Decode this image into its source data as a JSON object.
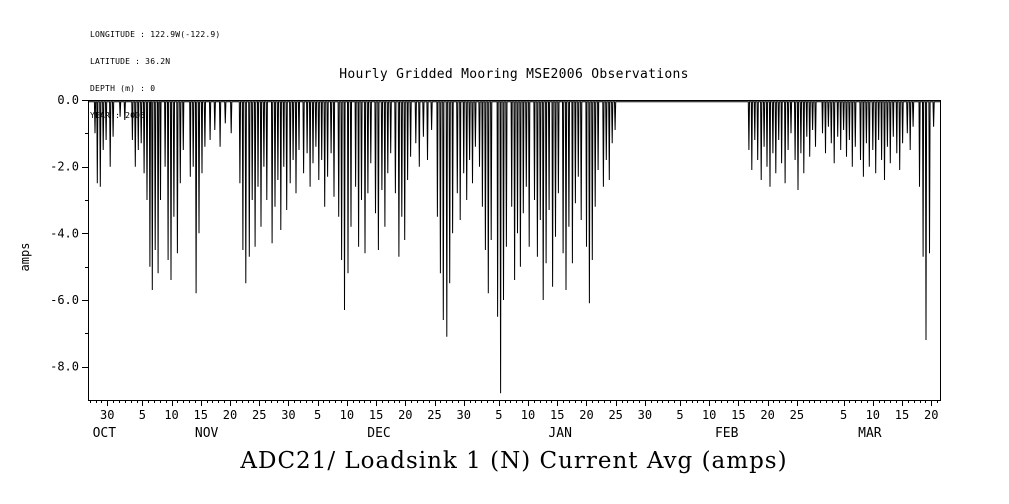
{
  "page": {
    "bg": "#ffffff",
    "fg": "#000000"
  },
  "metadata": {
    "lines": [
      "LONGITUDE : 122.9W(-122.9)",
      "LATITUDE : 36.2N",
      "DEPTH (m) : 0",
      "YEAR : 2006"
    ]
  },
  "title": "Hourly Gridded Mooring MSE2006 Observations",
  "bottom_title": "ADC21/ Loadsink 1 (N) Current Avg (amps)",
  "chart_data": {
    "type": "line",
    "title": "Hourly Gridded Mooring MSE2006 Observations",
    "xlabel": "",
    "ylabel": "amps",
    "ylim": [
      -9,
      0
    ],
    "xlim_days": [
      -0.3,
      145.5
    ],
    "x_axis_note": "time axis; day 0 = Oct 27, range Oct-Mar",
    "grid": false,
    "legend": "none",
    "line_color": "#000000",
    "baseline": -0.05,
    "y_ticks": [
      0,
      -2,
      -4,
      -6,
      -8
    ],
    "y_tick_labels": [
      "0.0",
      "-2.0",
      "-4.0",
      "-6.0",
      "-8.0"
    ],
    "y_minor_ticks": [
      -1,
      -3,
      -5,
      -7
    ],
    "x_ticks": [
      {
        "day": 3,
        "label": "30"
      },
      {
        "day": 9,
        "label": "5"
      },
      {
        "day": 14,
        "label": "10"
      },
      {
        "day": 19,
        "label": "15"
      },
      {
        "day": 24,
        "label": "20"
      },
      {
        "day": 29,
        "label": "25"
      },
      {
        "day": 34,
        "label": "30"
      },
      {
        "day": 39,
        "label": "5"
      },
      {
        "day": 44,
        "label": "10"
      },
      {
        "day": 49,
        "label": "15"
      },
      {
        "day": 54,
        "label": "20"
      },
      {
        "day": 59,
        "label": "25"
      },
      {
        "day": 64,
        "label": "30"
      },
      {
        "day": 70,
        "label": "5"
      },
      {
        "day": 75,
        "label": "10"
      },
      {
        "day": 80,
        "label": "15"
      },
      {
        "day": 85,
        "label": "20"
      },
      {
        "day": 90,
        "label": "25"
      },
      {
        "day": 95,
        "label": "30"
      },
      {
        "day": 101,
        "label": "5"
      },
      {
        "day": 106,
        "label": "10"
      },
      {
        "day": 111,
        "label": "15"
      },
      {
        "day": 116,
        "label": "20"
      },
      {
        "day": 121,
        "label": "25"
      },
      {
        "day": 129,
        "label": "5"
      },
      {
        "day": 134,
        "label": "10"
      },
      {
        "day": 139,
        "label": "15"
      },
      {
        "day": 144,
        "label": "20"
      }
    ],
    "month_labels": [
      {
        "day": 2.5,
        "label": "OCT"
      },
      {
        "day": 20,
        "label": "NOV"
      },
      {
        "day": 49.5,
        "label": "DEC"
      },
      {
        "day": 80.5,
        "label": "JAN"
      },
      {
        "day": 109,
        "label": "FEB"
      },
      {
        "day": 133.5,
        "label": "MAR"
      }
    ],
    "series": [
      {
        "name": "ADC21/ Loadsink 1 (N) Current Avg",
        "units": "amps",
        "spikes": [
          [
            0.9,
            -1.0
          ],
          [
            1.3,
            -2.5
          ],
          [
            1.8,
            -2.6
          ],
          [
            2.3,
            -1.5
          ],
          [
            2.8,
            -1.2
          ],
          [
            3.5,
            -2.0
          ],
          [
            4.0,
            -1.1
          ],
          [
            5.2,
            -0.5
          ],
          [
            6.0,
            -0.6
          ],
          [
            7.3,
            -1.2
          ],
          [
            7.8,
            -2.0
          ],
          [
            8.3,
            -1.5
          ],
          [
            8.8,
            -1.3
          ],
          [
            9.3,
            -2.2
          ],
          [
            9.8,
            -3.0
          ],
          [
            10.3,
            -5.0
          ],
          [
            10.7,
            -5.7
          ],
          [
            11.2,
            -4.5
          ],
          [
            11.7,
            -5.2
          ],
          [
            12.1,
            -3.0
          ],
          [
            12.9,
            -2.0
          ],
          [
            13.4,
            -4.8
          ],
          [
            13.9,
            -5.4
          ],
          [
            14.4,
            -3.5
          ],
          [
            15.0,
            -4.6
          ],
          [
            15.5,
            -2.5
          ],
          [
            16.0,
            -1.5
          ],
          [
            17.2,
            -2.3
          ],
          [
            17.7,
            -2.0
          ],
          [
            18.2,
            -5.8
          ],
          [
            18.7,
            -4.0
          ],
          [
            19.2,
            -2.2
          ],
          [
            19.7,
            -1.4
          ],
          [
            20.6,
            -1.2
          ],
          [
            21.4,
            -0.9
          ],
          [
            22.3,
            -1.4
          ],
          [
            23.2,
            -0.7
          ],
          [
            24.2,
            -1.0
          ],
          [
            25.7,
            -2.5
          ],
          [
            26.2,
            -4.5
          ],
          [
            26.7,
            -5.5
          ],
          [
            27.3,
            -4.7
          ],
          [
            27.8,
            -3.0
          ],
          [
            28.3,
            -4.4
          ],
          [
            28.8,
            -2.6
          ],
          [
            29.3,
            -3.8
          ],
          [
            29.8,
            -2.0
          ],
          [
            30.3,
            -3.0
          ],
          [
            31.2,
            -4.3
          ],
          [
            31.7,
            -3.2
          ],
          [
            32.2,
            -2.4
          ],
          [
            32.7,
            -3.9
          ],
          [
            33.2,
            -2.0
          ],
          [
            33.7,
            -3.3
          ],
          [
            34.3,
            -2.5
          ],
          [
            34.8,
            -1.8
          ],
          [
            35.3,
            -2.8
          ],
          [
            35.8,
            -1.5
          ],
          [
            36.6,
            -2.2
          ],
          [
            37.2,
            -1.6
          ],
          [
            37.7,
            -2.6
          ],
          [
            38.2,
            -1.9
          ],
          [
            38.7,
            -1.4
          ],
          [
            39.2,
            -2.4
          ],
          [
            39.7,
            -1.8
          ],
          [
            40.2,
            -3.2
          ],
          [
            40.7,
            -2.3
          ],
          [
            41.3,
            -1.6
          ],
          [
            41.8,
            -2.9
          ],
          [
            42.6,
            -3.5
          ],
          [
            43.1,
            -4.8
          ],
          [
            43.6,
            -6.3
          ],
          [
            44.2,
            -5.2
          ],
          [
            44.7,
            -3.8
          ],
          [
            45.5,
            -2.6
          ],
          [
            46.0,
            -4.4
          ],
          [
            46.5,
            -3.0
          ],
          [
            47.1,
            -4.6
          ],
          [
            47.6,
            -2.8
          ],
          [
            48.1,
            -1.9
          ],
          [
            48.9,
            -3.4
          ],
          [
            49.4,
            -4.5
          ],
          [
            50.0,
            -2.7
          ],
          [
            50.5,
            -3.8
          ],
          [
            51.0,
            -2.2
          ],
          [
            51.5,
            -1.6
          ],
          [
            52.3,
            -2.8
          ],
          [
            52.9,
            -4.7
          ],
          [
            53.4,
            -3.5
          ],
          [
            53.9,
            -4.2
          ],
          [
            54.4,
            -2.4
          ],
          [
            54.9,
            -1.7
          ],
          [
            55.8,
            -1.3
          ],
          [
            56.4,
            -2.0
          ],
          [
            57.1,
            -1.1
          ],
          [
            57.8,
            -1.8
          ],
          [
            58.5,
            -0.9
          ],
          [
            59.5,
            -3.5
          ],
          [
            60.0,
            -5.2
          ],
          [
            60.5,
            -6.6
          ],
          [
            61.1,
            -7.1
          ],
          [
            61.6,
            -5.5
          ],
          [
            62.1,
            -4.0
          ],
          [
            62.9,
            -2.8
          ],
          [
            63.4,
            -3.6
          ],
          [
            64.0,
            -2.2
          ],
          [
            64.5,
            -3.0
          ],
          [
            65.0,
            -1.8
          ],
          [
            65.5,
            -2.5
          ],
          [
            66.0,
            -1.4
          ],
          [
            66.7,
            -2.0
          ],
          [
            67.2,
            -3.2
          ],
          [
            67.7,
            -4.5
          ],
          [
            68.2,
            -5.8
          ],
          [
            68.7,
            -4.2
          ],
          [
            69.8,
            -6.5
          ],
          [
            70.3,
            -8.8
          ],
          [
            70.8,
            -6.0
          ],
          [
            71.3,
            -4.4
          ],
          [
            72.2,
            -3.2
          ],
          [
            72.7,
            -5.4
          ],
          [
            73.2,
            -4.0
          ],
          [
            73.7,
            -5.0
          ],
          [
            74.2,
            -3.4
          ],
          [
            74.7,
            -2.6
          ],
          [
            75.2,
            -4.4
          ],
          [
            76.1,
            -3.0
          ],
          [
            76.6,
            -4.7
          ],
          [
            77.1,
            -3.6
          ],
          [
            77.6,
            -6.0
          ],
          [
            78.1,
            -4.9
          ],
          [
            78.6,
            -3.3
          ],
          [
            79.2,
            -5.6
          ],
          [
            79.7,
            -4.1
          ],
          [
            80.2,
            -2.8
          ],
          [
            81.0,
            -4.6
          ],
          [
            81.5,
            -5.7
          ],
          [
            82.0,
            -3.8
          ],
          [
            82.6,
            -4.9
          ],
          [
            83.1,
            -3.1
          ],
          [
            83.6,
            -2.3
          ],
          [
            84.1,
            -3.6
          ],
          [
            85.0,
            -4.4
          ],
          [
            85.5,
            -6.1
          ],
          [
            86.0,
            -4.8
          ],
          [
            86.5,
            -3.2
          ],
          [
            87.0,
            -2.1
          ],
          [
            87.9,
            -2.6
          ],
          [
            88.4,
            -1.8
          ],
          [
            88.9,
            -2.4
          ],
          [
            89.4,
            -1.3
          ],
          [
            89.9,
            -0.9
          ],
          [
            112.8,
            -1.5
          ],
          [
            113.3,
            -2.1
          ],
          [
            113.8,
            -1.2
          ],
          [
            114.3,
            -1.8
          ],
          [
            114.9,
            -2.4
          ],
          [
            115.4,
            -1.4
          ],
          [
            115.9,
            -2.0
          ],
          [
            116.4,
            -2.6
          ],
          [
            116.9,
            -1.6
          ],
          [
            117.4,
            -2.2
          ],
          [
            117.9,
            -1.2
          ],
          [
            118.4,
            -1.9
          ],
          [
            119.0,
            -2.5
          ],
          [
            119.5,
            -1.5
          ],
          [
            120.0,
            -1.0
          ],
          [
            120.7,
            -1.8
          ],
          [
            121.2,
            -2.7
          ],
          [
            121.7,
            -1.6
          ],
          [
            122.2,
            -2.2
          ],
          [
            122.7,
            -1.1
          ],
          [
            123.2,
            -1.7
          ],
          [
            123.7,
            -0.9
          ],
          [
            124.2,
            -1.4
          ],
          [
            125.4,
            -1.0
          ],
          [
            125.9,
            -1.6
          ],
          [
            126.4,
            -0.8
          ],
          [
            126.9,
            -1.3
          ],
          [
            127.4,
            -1.9
          ],
          [
            128.0,
            -1.1
          ],
          [
            128.5,
            -1.5
          ],
          [
            129.0,
            -0.9
          ],
          [
            129.5,
            -1.7
          ],
          [
            130.0,
            -1.2
          ],
          [
            130.5,
            -2.0
          ],
          [
            131.0,
            -1.4
          ],
          [
            131.9,
            -1.8
          ],
          [
            132.4,
            -2.3
          ],
          [
            132.9,
            -1.3
          ],
          [
            133.4,
            -2.0
          ],
          [
            134.0,
            -1.5
          ],
          [
            134.5,
            -2.2
          ],
          [
            135.0,
            -1.2
          ],
          [
            135.5,
            -1.8
          ],
          [
            136.0,
            -2.4
          ],
          [
            136.5,
            -1.4
          ],
          [
            137.0,
            -1.9
          ],
          [
            137.5,
            -1.1
          ],
          [
            138.1,
            -1.6
          ],
          [
            138.6,
            -2.1
          ],
          [
            139.1,
            -1.3
          ],
          [
            139.9,
            -1.0
          ],
          [
            140.4,
            -1.5
          ],
          [
            140.9,
            -0.8
          ],
          [
            142.0,
            -2.6
          ],
          [
            142.6,
            -4.7
          ],
          [
            143.1,
            -7.2
          ],
          [
            143.7,
            -4.6
          ],
          [
            144.4,
            -0.8
          ]
        ]
      }
    ]
  }
}
